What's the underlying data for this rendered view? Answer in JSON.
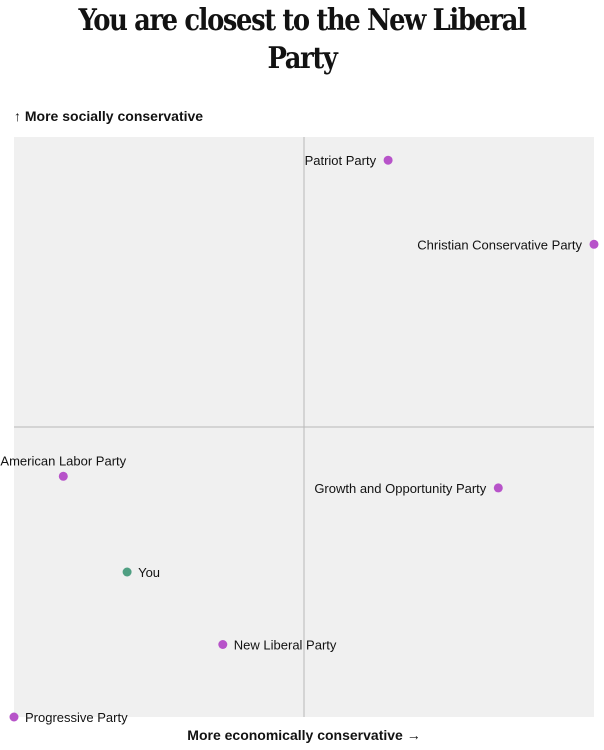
{
  "chart_data": {
    "type": "scatter",
    "title": "You are closest to the New Liberal Party",
    "xlabel": "More economically conservative →",
    "ylabel": "↑ More socially conservative",
    "xlim": [
      -1,
      1
    ],
    "ylim": [
      -1,
      1
    ],
    "grid": false,
    "points": [
      {
        "label": "Patriot Party",
        "x": 0.29,
        "y": 0.92,
        "color": "#b753c9",
        "label_side": "left"
      },
      {
        "label": "Christian Conservative Party",
        "x": 1.0,
        "y": 0.63,
        "color": "#b753c9",
        "label_side": "left"
      },
      {
        "label": "American Labor Party",
        "x": -0.83,
        "y": -0.17,
        "color": "#b753c9",
        "label_side": "above"
      },
      {
        "label": "Growth and Opportunity Party",
        "x": 0.67,
        "y": -0.21,
        "color": "#b753c9",
        "label_side": "left"
      },
      {
        "label": "You",
        "x": -0.61,
        "y": -0.5,
        "color": "#4f9f82",
        "label_side": "right"
      },
      {
        "label": "New Liberal Party",
        "x": -0.28,
        "y": -0.75,
        "color": "#b753c9",
        "label_side": "right"
      },
      {
        "label": "Progressive Party",
        "x": -1.0,
        "y": -1.0,
        "color": "#b753c9",
        "label_side": "right"
      }
    ]
  },
  "colors": {
    "plot_background": "#f0f0f0",
    "axis_lines": "#b8b8b8",
    "party_dot": "#b753c9",
    "you_dot": "#4f9f82"
  }
}
